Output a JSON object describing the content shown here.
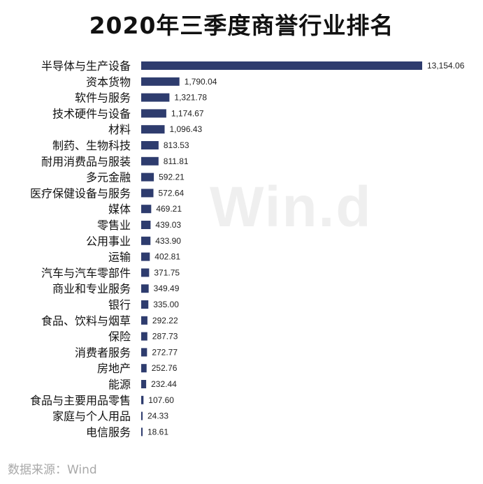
{
  "title": "2020年三季度商誉行业排名",
  "source": "数据来源：Wind",
  "watermark": "Win.d",
  "chart_data": {
    "type": "bar",
    "orientation": "horizontal",
    "title": "2020年三季度商誉行业排名",
    "bar_color": "#2e3c6e",
    "categories": [
      "半导体与生产设备",
      "资本货物",
      "软件与服务",
      "技术硬件与设备",
      "材料",
      "制药、生物科技",
      "耐用消费品与服装",
      "多元金融",
      "医疗保健设备与服务",
      "媒体",
      "零售业",
      "公用事业",
      "运输",
      "汽车与汽车零部件",
      "商业和专业服务",
      "银行",
      "食品、饮料与烟草",
      "保险",
      "消费者服务",
      "房地产",
      "能源",
      "食品与主要用品零售",
      "家庭与个人用品",
      "电信服务"
    ],
    "values": [
      13154.06,
      1790.04,
      1321.78,
      1174.67,
      1096.43,
      813.53,
      811.81,
      592.21,
      572.64,
      469.21,
      439.03,
      433.9,
      402.81,
      371.75,
      349.49,
      335.0,
      292.22,
      287.73,
      272.77,
      252.76,
      232.44,
      107.6,
      24.33,
      18.61
    ],
    "value_labels": [
      "13,154.06",
      "1,790.04",
      "1,321.78",
      "1,174.67",
      "1,096.43",
      "813.53",
      "811.81",
      "592.21",
      "572.64",
      "469.21",
      "439.03",
      "433.90",
      "402.81",
      "371.75",
      "349.49",
      "335.00",
      "292.22",
      "287.73",
      "272.77",
      "252.76",
      "232.44",
      "107.60",
      "24.33",
      "18.61"
    ]
  }
}
